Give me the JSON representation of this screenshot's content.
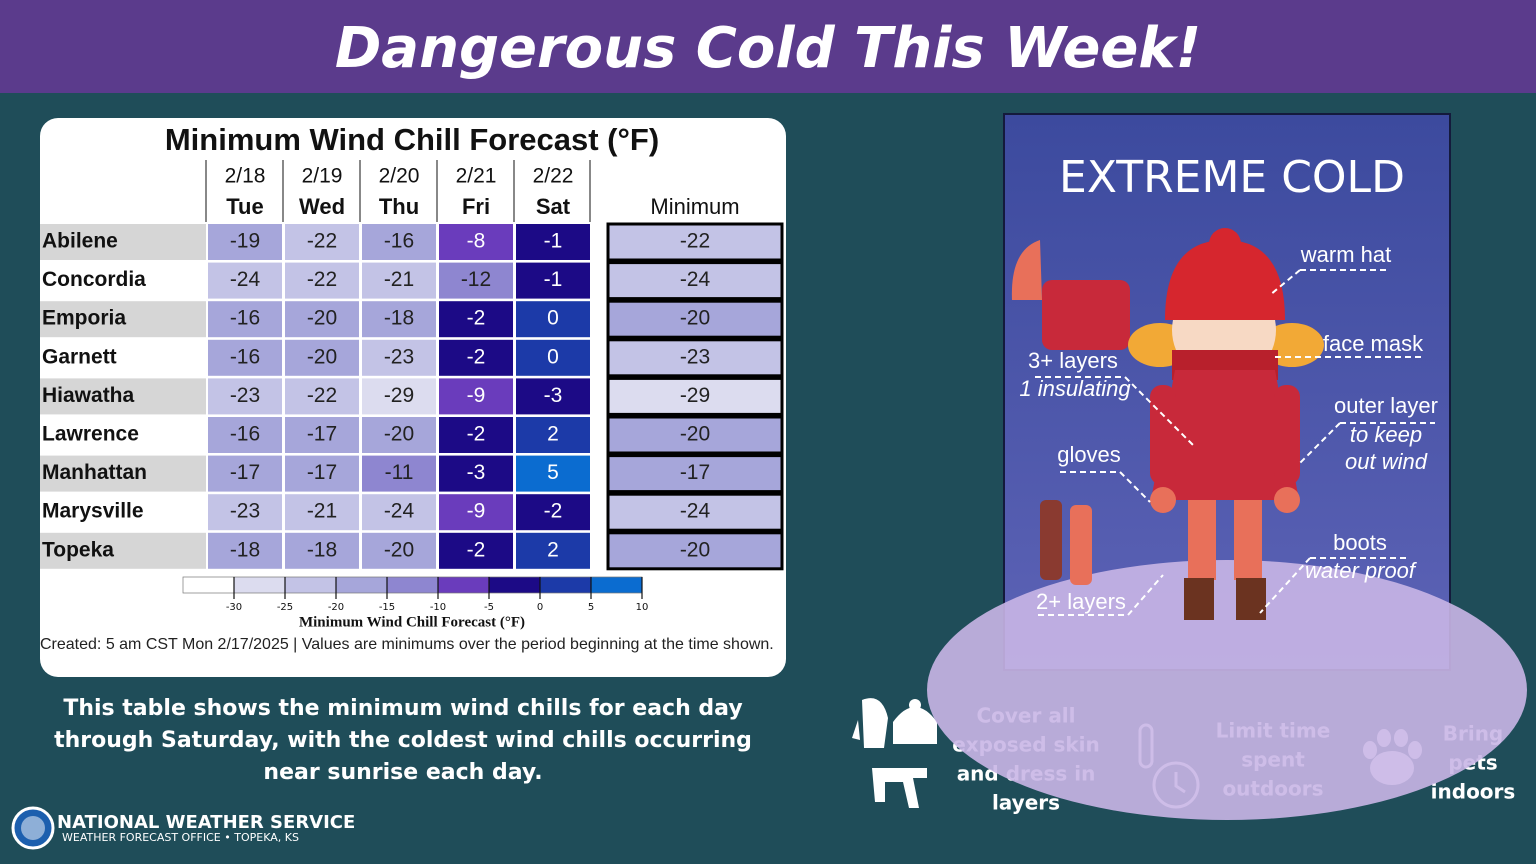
{
  "header": {
    "title": "Dangerous Cold This Week!"
  },
  "table": {
    "title": "Minimum Wind Chill Forecast (°F)",
    "dates": [
      "2/18",
      "2/19",
      "2/20",
      "2/21",
      "2/22"
    ],
    "days": [
      "Tue",
      "Wed",
      "Thu",
      "Fri",
      "Sat"
    ],
    "minimum_header": "Minimum",
    "rows": [
      {
        "city": "Abilene",
        "values": [
          -19,
          -22,
          -16,
          -8,
          -1
        ],
        "minimum": -22
      },
      {
        "city": "Concordia",
        "values": [
          -24,
          -22,
          -21,
          -12,
          -1
        ],
        "minimum": -24
      },
      {
        "city": "Emporia",
        "values": [
          -16,
          -20,
          -18,
          -2,
          0
        ],
        "minimum": -20
      },
      {
        "city": "Garnett",
        "values": [
          -16,
          -20,
          -23,
          -2,
          0
        ],
        "minimum": -23
      },
      {
        "city": "Hiawatha",
        "values": [
          -23,
          -22,
          -29,
          -9,
          -3
        ],
        "minimum": -29
      },
      {
        "city": "Lawrence",
        "values": [
          -16,
          -17,
          -20,
          -2,
          2
        ],
        "minimum": -20
      },
      {
        "city": "Manhattan",
        "values": [
          -17,
          -17,
          -11,
          -3,
          5
        ],
        "minimum": -17
      },
      {
        "city": "Marysville",
        "values": [
          -23,
          -21,
          -24,
          -9,
          -2
        ],
        "minimum": -24
      },
      {
        "city": "Topeka",
        "values": [
          -18,
          -18,
          -20,
          -2,
          2
        ],
        "minimum": -20
      }
    ]
  },
  "colorbar": {
    "ticks": [
      -30,
      -25,
      -20,
      -15,
      -10,
      -5,
      0,
      5,
      10
    ],
    "colors": [
      "#ffffff",
      "#dcdcef",
      "#c3c3e6",
      "#a6a6da",
      "#8e86d0",
      "#6a3cbc",
      "#1c0a86",
      "#1c3aa8",
      "#0b6cd0"
    ],
    "label": "Minimum Wind Chill Forecast (°F)"
  },
  "footnote": "Created: 5 am CST Mon 2/17/2025  |  Values are minimums over the period beginning at the time shown.",
  "caption": [
    "This table shows the minimum wind chills for each day",
    "through Saturday, with the coldest wind chills occurring",
    "near sunrise each day."
  ],
  "logo": {
    "name": "NATIONAL WEATHER SERVICE",
    "office": "WEATHER FORECAST OFFICE • TOPEKA, KS"
  },
  "tips": [
    [
      "Cover all",
      "exposed skin",
      "and dress in",
      "layers"
    ],
    [
      "Limit time",
      "spent",
      "outdoors"
    ],
    [
      "Bring",
      "pets",
      "indoors"
    ]
  ],
  "poster": {
    "title": "EXTREME COLD",
    "labels": [
      "warm hat",
      "face mask",
      "3+ layers",
      "1 insulating",
      "outer layer",
      "to keep",
      "out wind",
      "gloves",
      "boots",
      "water proof",
      "2+ layers"
    ]
  }
}
